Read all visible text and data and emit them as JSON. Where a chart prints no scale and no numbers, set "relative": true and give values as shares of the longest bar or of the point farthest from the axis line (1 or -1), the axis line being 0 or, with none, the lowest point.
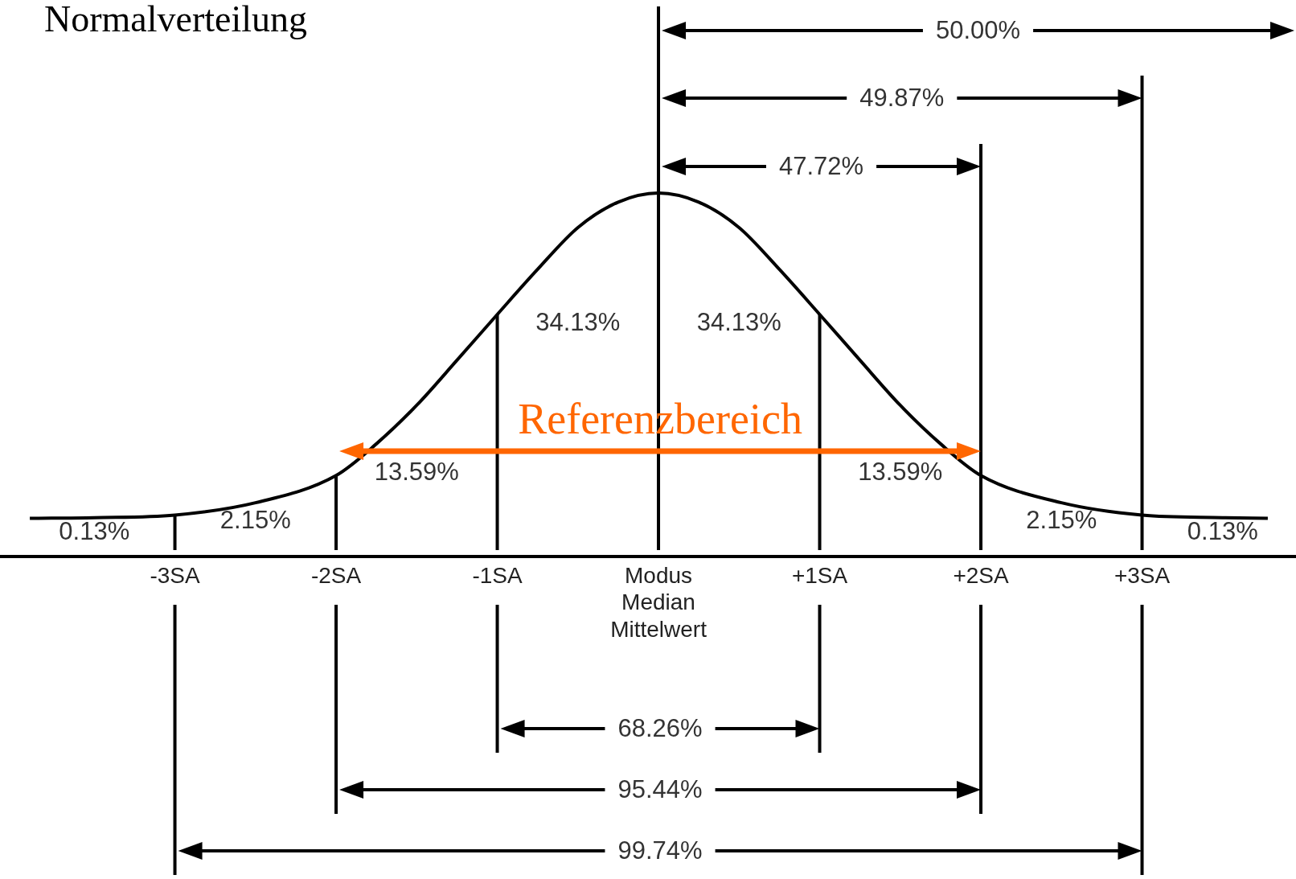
{
  "chart_data": {
    "type": "line",
    "title": "Normalverteilung",
    "relative": true,
    "color": "#000000",
    "marker": "none",
    "legend": false,
    "grid": false,
    "x": [
      -3.9,
      -3.5,
      -3,
      -2.5,
      -2,
      -1.75,
      -1.5,
      -1.25,
      -1,
      -0.75,
      -0.5,
      -0.25,
      0,
      0.25,
      0.5,
      0.75,
      1,
      1.25,
      1.5,
      1.75,
      2,
      2.5,
      3,
      3.5,
      3.78
    ],
    "values": [
      0.105,
      0.107,
      0.114,
      0.148,
      0.223,
      0.31,
      0.416,
      0.54,
      0.666,
      0.79,
      0.905,
      0.975,
      1,
      0.975,
      0.905,
      0.79,
      0.666,
      0.54,
      0.416,
      0.31,
      0.223,
      0.148,
      0.114,
      0.107,
      0.105
    ],
    "xlim": [
      -4.085,
      3.955
    ],
    "xticks": [
      {
        "value": -3,
        "label": "-3SA"
      },
      {
        "value": -2,
        "label": "-2SA"
      },
      {
        "value": -1,
        "label": "-1SA"
      },
      {
        "value": 0,
        "label": "Modus\nMedian\nMittelwert"
      },
      {
        "value": 1,
        "label": "+1SA"
      },
      {
        "value": 2,
        "label": "+2SA"
      },
      {
        "value": 3,
        "label": "+3SA"
      }
    ],
    "ref_lines": [
      {
        "axis": "x",
        "value": -3
      },
      {
        "axis": "x",
        "value": -2
      },
      {
        "axis": "x",
        "value": -1
      },
      {
        "axis": "x",
        "value": 0
      },
      {
        "axis": "x",
        "value": 1
      },
      {
        "axis": "x",
        "value": 2
      },
      {
        "axis": "x",
        "value": 3
      }
    ],
    "annotations": [
      "50.00%",
      "49.87%",
      "47.72%",
      "Referenzbereich",
      "68.26%",
      "95.44%",
      "99.74%",
      "34.13%",
      "34.13%",
      "13.59%",
      "13.59%",
      "2.15%",
      "2.15%",
      "0.13%",
      "0.13%"
    ]
  }
}
